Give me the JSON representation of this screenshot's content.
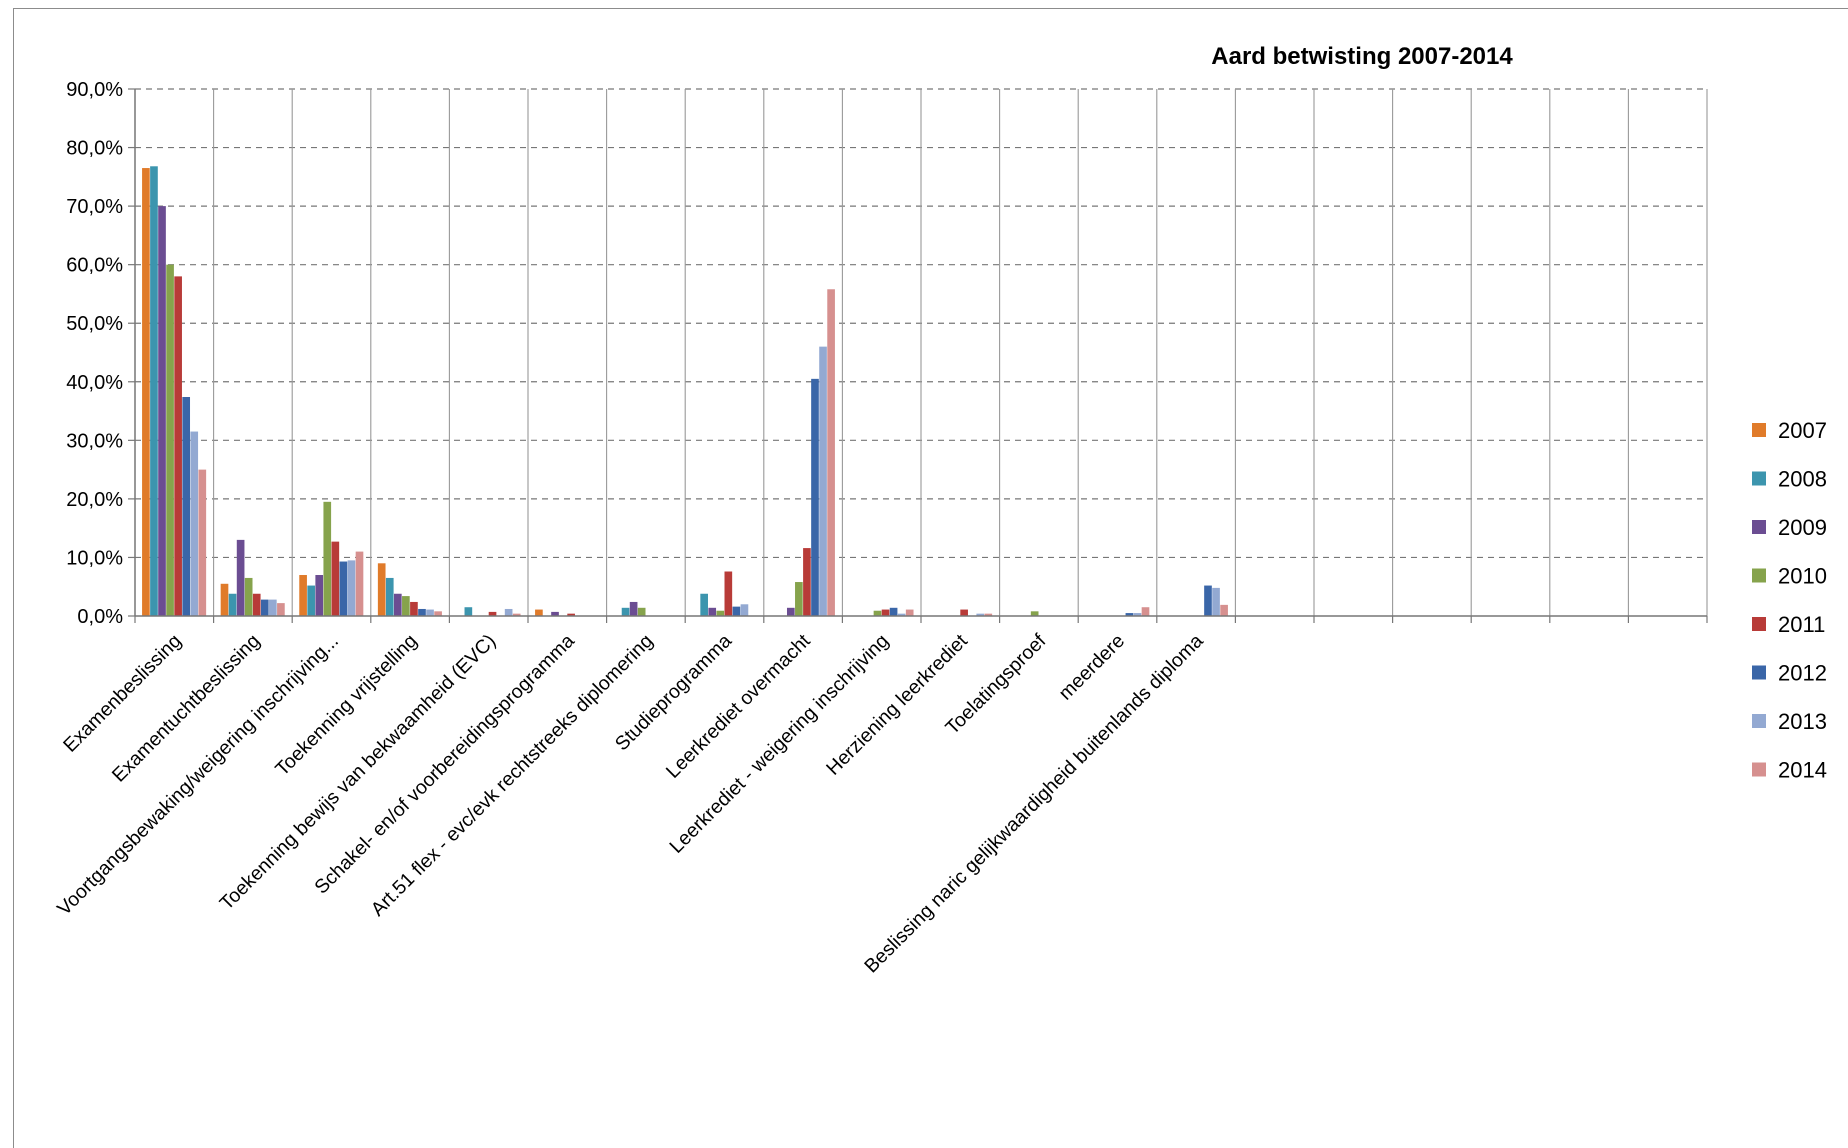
{
  "chart_data": {
    "type": "bar",
    "title": "Aard betwisting 2007-2014",
    "xlabel": "",
    "ylabel": "",
    "ylim": [
      0,
      90
    ],
    "y_ticks": [
      "0,0%",
      "10,0%",
      "20,0%",
      "30,0%",
      "40,0%",
      "50,0%",
      "60,0%",
      "70,0%",
      "80,0%",
      "90,0%"
    ],
    "grid": "dashed horizontal and solid vertical",
    "legend_position": "right",
    "categories": [
      "Examenbeslissing",
      "Examentuchtbeslissing",
      "Voortgangsbewaking/weigering inschrijving...",
      "Toekenning vrijstelling",
      "Toekenning bewijs van bekwaamheid (EVC)",
      "Schakel- en/of voorbereidingsprogramma",
      "Art.51 flex - evc/evk rechtstreeks diplomering",
      "Studieprogramma",
      "Leerkrediet overmacht",
      "Leerkrediet - weigering inschrijving",
      "Herziening leerkrediet",
      "Toelatingsproef",
      "meerdere",
      "Beslissing naric gelijkwaardigheid buitenlands diploma",
      "",
      "",
      "",
      "",
      "",
      ""
    ],
    "series": [
      {
        "name": "2007",
        "color": "#E07B2A",
        "values": [
          76.5,
          5.5,
          7.0,
          9.0,
          0,
          1.1,
          0,
          0,
          0,
          0,
          0,
          0,
          0,
          0,
          0,
          0,
          0,
          0,
          0,
          0
        ]
      },
      {
        "name": "2008",
        "color": "#3C95AE",
        "values": [
          76.8,
          3.8,
          5.2,
          6.5,
          1.5,
          0,
          1.4,
          3.8,
          0,
          0,
          0,
          0,
          0,
          0,
          0,
          0,
          0,
          0,
          0,
          0
        ]
      },
      {
        "name": "2009",
        "color": "#6B4D92",
        "values": [
          70.0,
          13.0,
          7.0,
          3.8,
          0,
          0.7,
          2.4,
          1.4,
          1.4,
          0,
          0,
          0,
          0,
          0,
          0,
          0,
          0,
          0,
          0,
          0
        ]
      },
      {
        "name": "2010",
        "color": "#86A34C",
        "values": [
          60.0,
          6.5,
          19.5,
          3.4,
          0,
          0,
          1.4,
          0.9,
          5.8,
          0.9,
          0,
          0.8,
          0,
          0,
          0,
          0,
          0,
          0,
          0,
          0
        ]
      },
      {
        "name": "2011",
        "color": "#B83B38",
        "values": [
          58.0,
          3.8,
          12.7,
          2.4,
          0.7,
          0.4,
          0,
          7.6,
          11.6,
          1.1,
          1.1,
          0,
          0,
          0,
          0,
          0,
          0,
          0,
          0,
          0
        ]
      },
      {
        "name": "2012",
        "color": "#3A66A8",
        "values": [
          37.4,
          2.8,
          9.3,
          1.2,
          0,
          0,
          0,
          1.6,
          40.5,
          1.4,
          0,
          0,
          0.5,
          5.2,
          0,
          0,
          0,
          0,
          0,
          0
        ]
      },
      {
        "name": "2013",
        "color": "#93A9D2",
        "values": [
          31.5,
          2.8,
          9.5,
          1.1,
          1.2,
          0,
          0,
          2.0,
          46.0,
          0.4,
          0.4,
          0,
          0.5,
          4.8,
          0,
          0,
          0,
          0,
          0,
          0
        ]
      },
      {
        "name": "2014",
        "color": "#D6908F",
        "values": [
          25.0,
          2.2,
          11.0,
          0.8,
          0.4,
          0,
          0,
          0,
          55.8,
          1.1,
          0.4,
          0,
          1.5,
          1.9,
          0,
          0,
          0,
          0,
          0,
          0
        ]
      }
    ]
  }
}
